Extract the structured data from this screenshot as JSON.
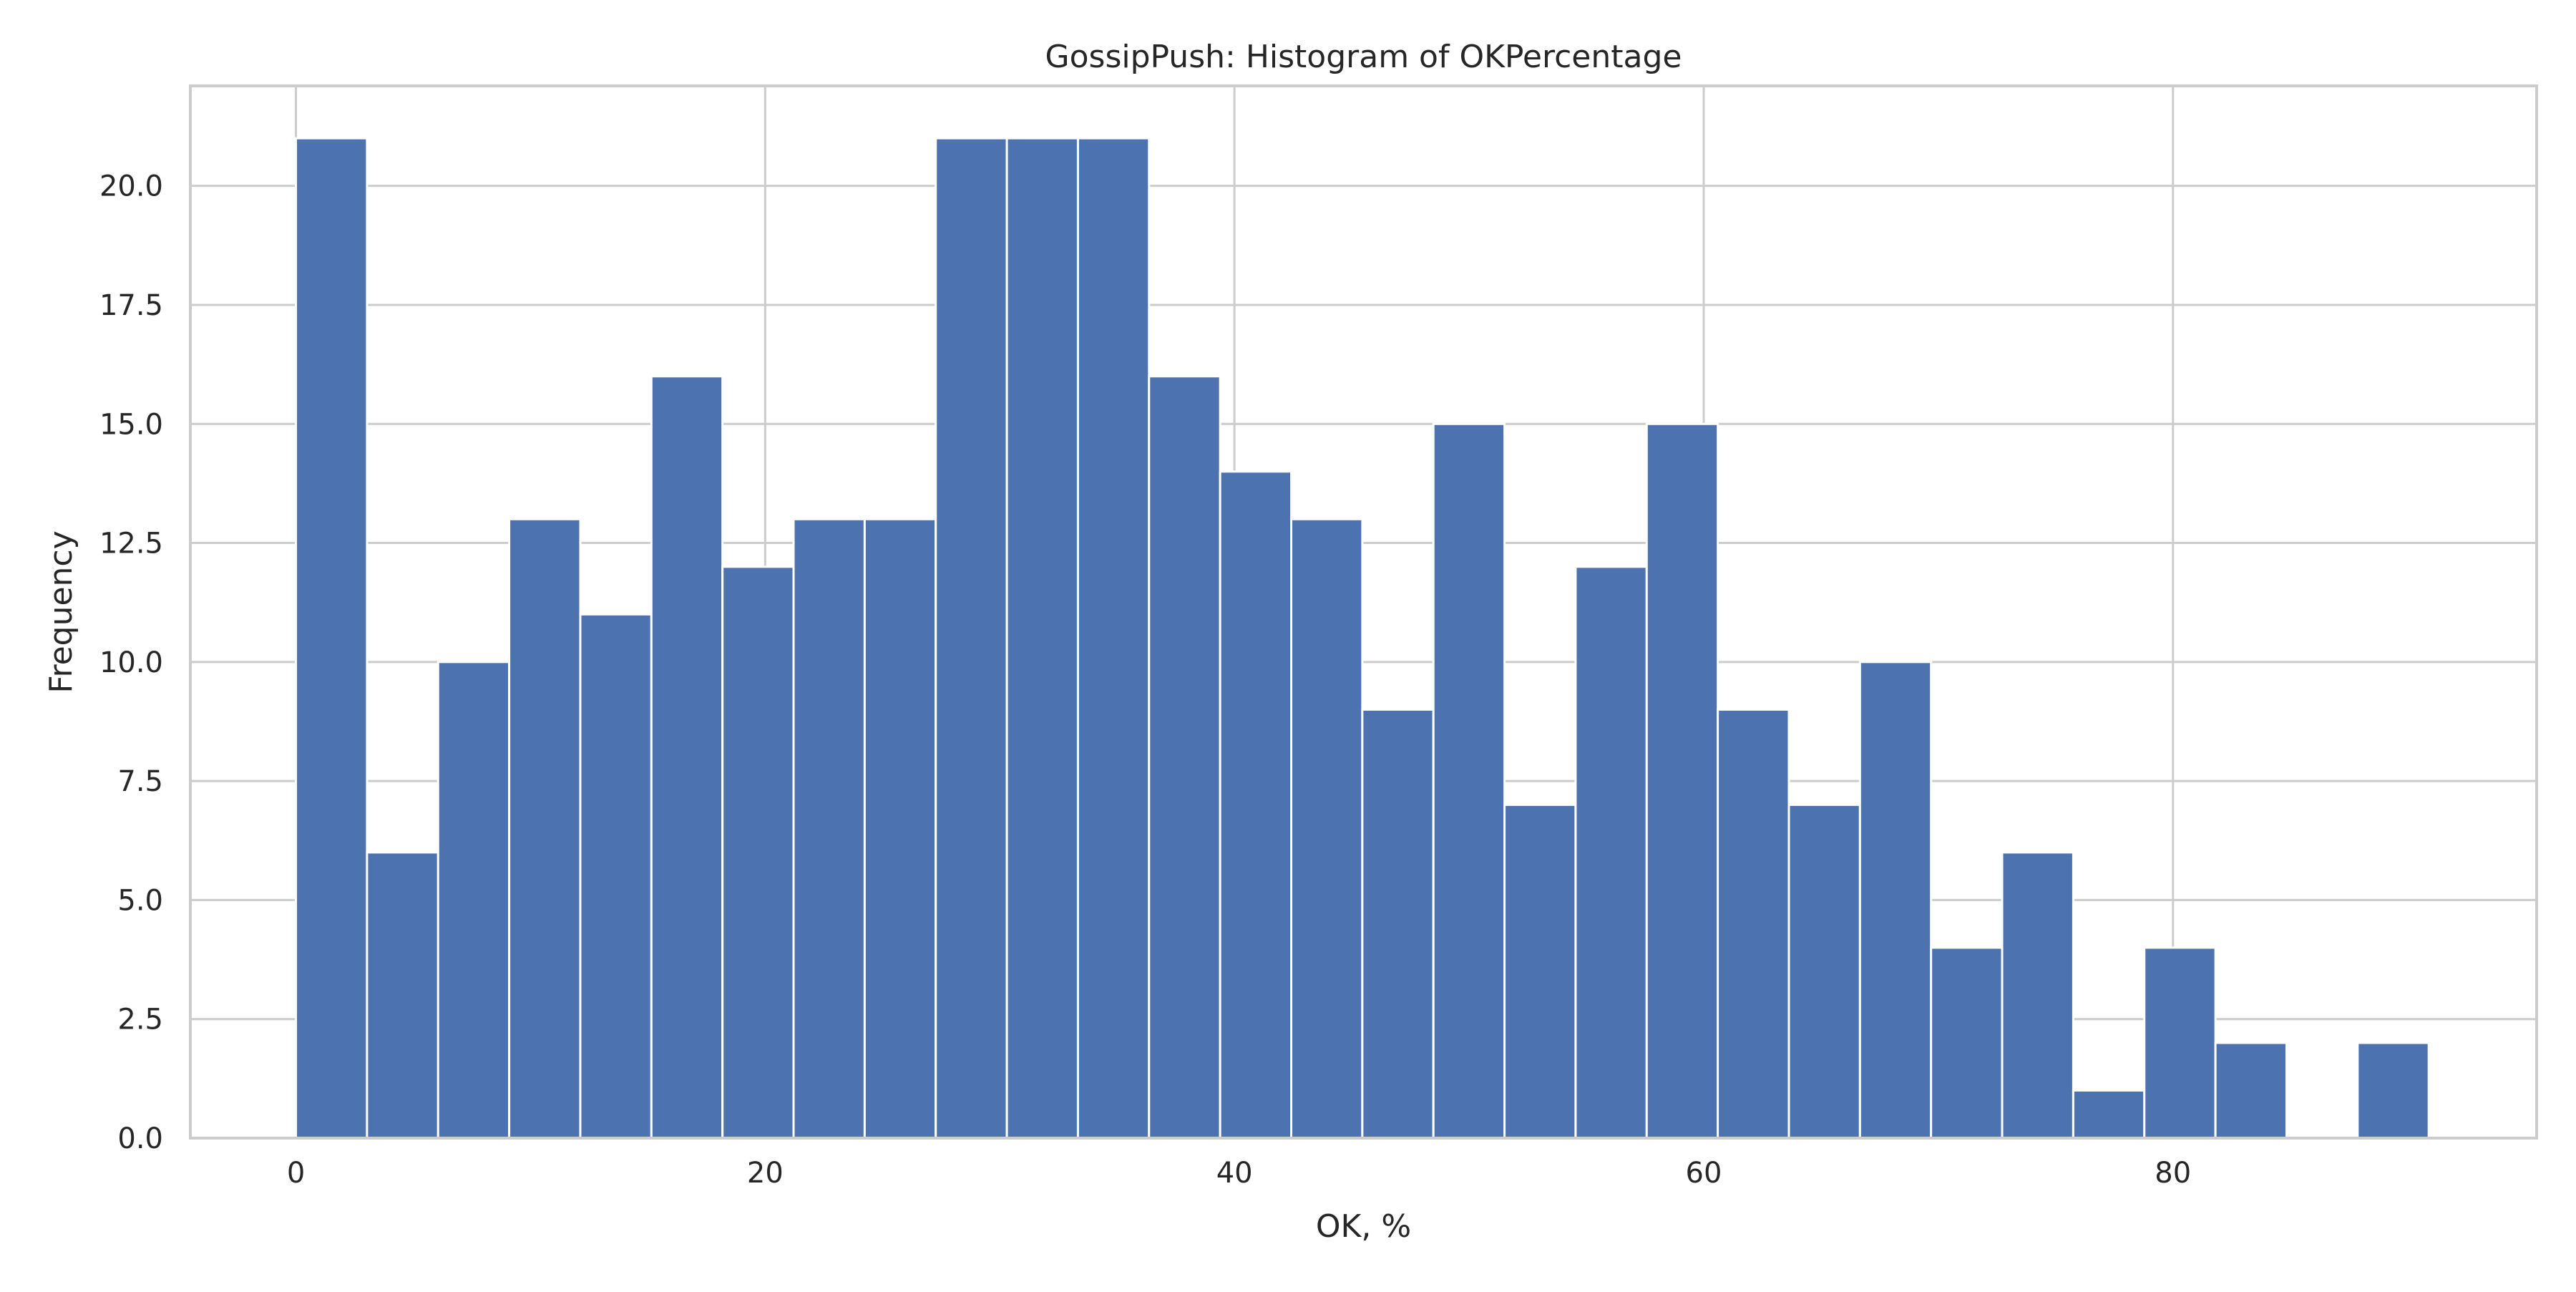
{
  "chart_data": {
    "type": "bar",
    "title": "GossipPush: Histogram of OKPercentage",
    "xlabel": "OK, %",
    "ylabel": "Frequency",
    "bin_start": 0,
    "bin_width": 3.03,
    "values": [
      21,
      6,
      10,
      13,
      11,
      16,
      12,
      13,
      13,
      21,
      21,
      21,
      16,
      14,
      13,
      9,
      15,
      7,
      12,
      15,
      9,
      7,
      10,
      4,
      6,
      1,
      4,
      2,
      0,
      2
    ],
    "xlim": [
      -4.5,
      95.5
    ],
    "ylim": [
      0,
      22.1
    ],
    "xticks": [
      0,
      20,
      40,
      60,
      80
    ],
    "xtick_labels": [
      "0",
      "20",
      "40",
      "60",
      "80"
    ],
    "yticks": [
      0,
      2.5,
      5,
      7.5,
      10,
      12.5,
      15,
      17.5,
      20
    ],
    "ytick_labels": [
      "0.0",
      "2.5",
      "5.0",
      "7.5",
      "10.0",
      "12.5",
      "15.0",
      "17.5",
      "20.0"
    ],
    "grid": true,
    "bar_color": "#4c72b0",
    "grid_color": "#cccccc",
    "spine_color": "#cccccc"
  }
}
